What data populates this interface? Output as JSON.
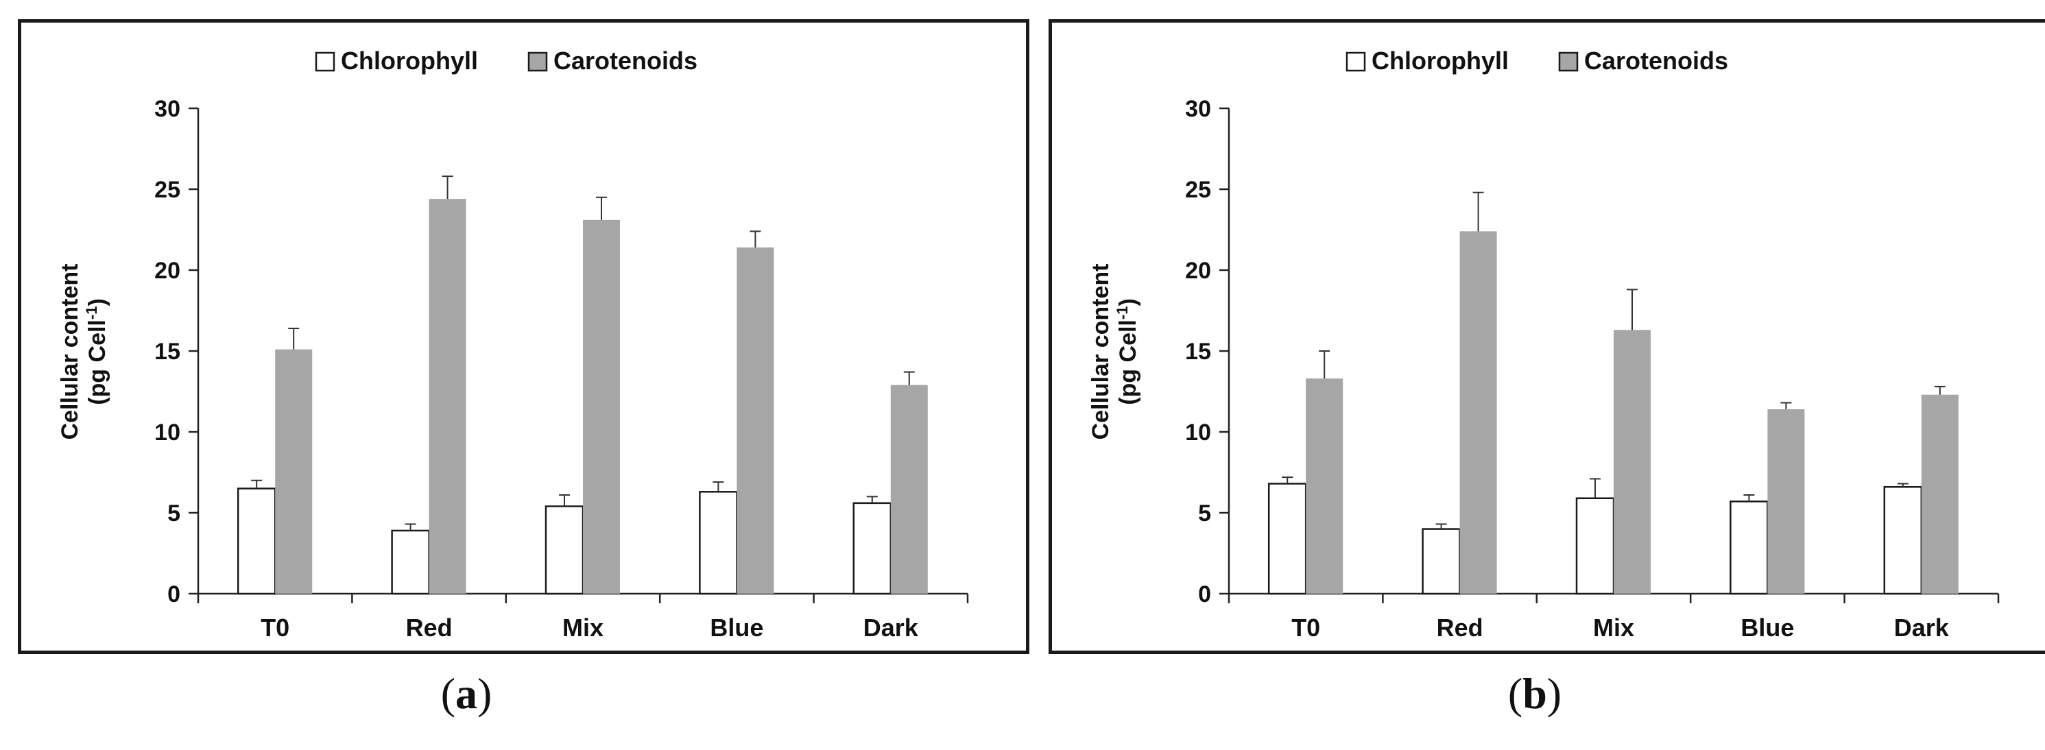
{
  "chart_data": [
    {
      "type": "bar",
      "panel_label": "a",
      "ylabel_line1": "Cellular content",
      "ylabel_line2_prefix": "(pg Cell",
      "ylabel_superscript": "-1",
      "ylabel_line2_suffix": ")",
      "ylim": [
        0,
        30
      ],
      "yticks": [
        "0",
        "5",
        "10",
        "15",
        "20",
        "25",
        "30"
      ],
      "categories": [
        "T0",
        "Red",
        "Mix",
        "Blue",
        "Dark"
      ],
      "series": [
        {
          "name": "Chlorophyll",
          "color": "#ffffff",
          "values": [
            6.5,
            3.9,
            5.4,
            6.3,
            5.6
          ],
          "errors": [
            0.5,
            0.4,
            0.7,
            0.6,
            0.4
          ]
        },
        {
          "name": "Carotenoids",
          "color": "#a6a6a6",
          "values": [
            15.1,
            24.4,
            23.1,
            21.4,
            12.9
          ],
          "errors": [
            1.3,
            1.4,
            1.4,
            1.0,
            0.8
          ]
        }
      ],
      "legend_position": "top-center"
    },
    {
      "type": "bar",
      "panel_label": "b",
      "ylabel_line1": "Cellular content",
      "ylabel_line2_prefix": "(pg Cell",
      "ylabel_superscript": "-1",
      "ylabel_line2_suffix": ")",
      "ylim": [
        0,
        30
      ],
      "yticks": [
        "0",
        "5",
        "10",
        "15",
        "20",
        "25",
        "30"
      ],
      "categories": [
        "T0",
        "Red",
        "Mix",
        "Blue",
        "Dark"
      ],
      "series": [
        {
          "name": "Chlorophyll",
          "color": "#ffffff",
          "values": [
            6.8,
            4.0,
            5.9,
            5.7,
            6.6
          ],
          "errors": [
            0.4,
            0.3,
            1.2,
            0.4,
            0.2
          ]
        },
        {
          "name": "Carotenoids",
          "color": "#a6a6a6",
          "values": [
            13.3,
            22.4,
            16.3,
            11.4,
            12.3
          ],
          "errors": [
            1.7,
            2.4,
            2.5,
            0.4,
            0.5
          ]
        }
      ],
      "legend_position": "top-center"
    }
  ],
  "captions": {
    "a": {
      "open": "(",
      "letter": "a",
      "close": ")"
    },
    "b": {
      "open": "(",
      "letter": "b",
      "close": ")"
    }
  }
}
